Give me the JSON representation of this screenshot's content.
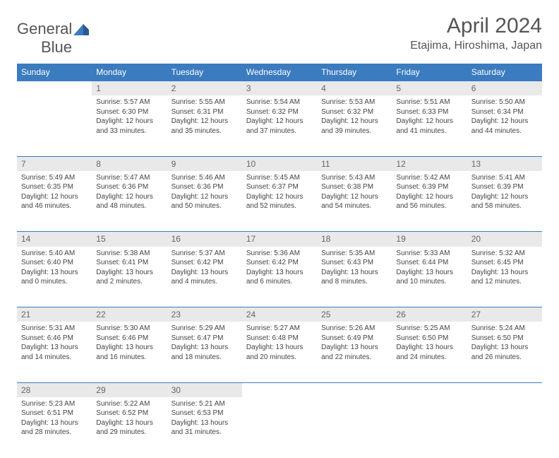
{
  "logo": {
    "text_left": "General",
    "text_right": "Blue"
  },
  "header": {
    "title": "April 2024",
    "location": "Etajima, Hiroshima, Japan"
  },
  "colors": {
    "header_bg": "#3b7bbf",
    "header_text": "#ffffff",
    "daynum_bg": "#e9e9e9",
    "daynum_text": "#666666",
    "body_text": "#444444",
    "divider": "#3b7bbf",
    "logo_gray": "#555555",
    "logo_blue": "#3b7bbf"
  },
  "day_headers": [
    "Sunday",
    "Monday",
    "Tuesday",
    "Wednesday",
    "Thursday",
    "Friday",
    "Saturday"
  ],
  "weeks": [
    {
      "nums": [
        "",
        "1",
        "2",
        "3",
        "4",
        "5",
        "6"
      ],
      "cells": [
        {
          "sunrise": "",
          "sunset": "",
          "daylight1": "",
          "daylight2": ""
        },
        {
          "sunrise": "Sunrise: 5:57 AM",
          "sunset": "Sunset: 6:30 PM",
          "daylight1": "Daylight: 12 hours",
          "daylight2": "and 33 minutes."
        },
        {
          "sunrise": "Sunrise: 5:55 AM",
          "sunset": "Sunset: 6:31 PM",
          "daylight1": "Daylight: 12 hours",
          "daylight2": "and 35 minutes."
        },
        {
          "sunrise": "Sunrise: 5:54 AM",
          "sunset": "Sunset: 6:32 PM",
          "daylight1": "Daylight: 12 hours",
          "daylight2": "and 37 minutes."
        },
        {
          "sunrise": "Sunrise: 5:53 AM",
          "sunset": "Sunset: 6:32 PM",
          "daylight1": "Daylight: 12 hours",
          "daylight2": "and 39 minutes."
        },
        {
          "sunrise": "Sunrise: 5:51 AM",
          "sunset": "Sunset: 6:33 PM",
          "daylight1": "Daylight: 12 hours",
          "daylight2": "and 41 minutes."
        },
        {
          "sunrise": "Sunrise: 5:50 AM",
          "sunset": "Sunset: 6:34 PM",
          "daylight1": "Daylight: 12 hours",
          "daylight2": "and 44 minutes."
        }
      ]
    },
    {
      "nums": [
        "7",
        "8",
        "9",
        "10",
        "11",
        "12",
        "13"
      ],
      "cells": [
        {
          "sunrise": "Sunrise: 5:49 AM",
          "sunset": "Sunset: 6:35 PM",
          "daylight1": "Daylight: 12 hours",
          "daylight2": "and 46 minutes."
        },
        {
          "sunrise": "Sunrise: 5:47 AM",
          "sunset": "Sunset: 6:36 PM",
          "daylight1": "Daylight: 12 hours",
          "daylight2": "and 48 minutes."
        },
        {
          "sunrise": "Sunrise: 5:46 AM",
          "sunset": "Sunset: 6:36 PM",
          "daylight1": "Daylight: 12 hours",
          "daylight2": "and 50 minutes."
        },
        {
          "sunrise": "Sunrise: 5:45 AM",
          "sunset": "Sunset: 6:37 PM",
          "daylight1": "Daylight: 12 hours",
          "daylight2": "and 52 minutes."
        },
        {
          "sunrise": "Sunrise: 5:43 AM",
          "sunset": "Sunset: 6:38 PM",
          "daylight1": "Daylight: 12 hours",
          "daylight2": "and 54 minutes."
        },
        {
          "sunrise": "Sunrise: 5:42 AM",
          "sunset": "Sunset: 6:39 PM",
          "daylight1": "Daylight: 12 hours",
          "daylight2": "and 56 minutes."
        },
        {
          "sunrise": "Sunrise: 5:41 AM",
          "sunset": "Sunset: 6:39 PM",
          "daylight1": "Daylight: 12 hours",
          "daylight2": "and 58 minutes."
        }
      ]
    },
    {
      "nums": [
        "14",
        "15",
        "16",
        "17",
        "18",
        "19",
        "20"
      ],
      "cells": [
        {
          "sunrise": "Sunrise: 5:40 AM",
          "sunset": "Sunset: 6:40 PM",
          "daylight1": "Daylight: 13 hours",
          "daylight2": "and 0 minutes."
        },
        {
          "sunrise": "Sunrise: 5:38 AM",
          "sunset": "Sunset: 6:41 PM",
          "daylight1": "Daylight: 13 hours",
          "daylight2": "and 2 minutes."
        },
        {
          "sunrise": "Sunrise: 5:37 AM",
          "sunset": "Sunset: 6:42 PM",
          "daylight1": "Daylight: 13 hours",
          "daylight2": "and 4 minutes."
        },
        {
          "sunrise": "Sunrise: 5:36 AM",
          "sunset": "Sunset: 6:42 PM",
          "daylight1": "Daylight: 13 hours",
          "daylight2": "and 6 minutes."
        },
        {
          "sunrise": "Sunrise: 5:35 AM",
          "sunset": "Sunset: 6:43 PM",
          "daylight1": "Daylight: 13 hours",
          "daylight2": "and 8 minutes."
        },
        {
          "sunrise": "Sunrise: 5:33 AM",
          "sunset": "Sunset: 6:44 PM",
          "daylight1": "Daylight: 13 hours",
          "daylight2": "and 10 minutes."
        },
        {
          "sunrise": "Sunrise: 5:32 AM",
          "sunset": "Sunset: 6:45 PM",
          "daylight1": "Daylight: 13 hours",
          "daylight2": "and 12 minutes."
        }
      ]
    },
    {
      "nums": [
        "21",
        "22",
        "23",
        "24",
        "25",
        "26",
        "27"
      ],
      "cells": [
        {
          "sunrise": "Sunrise: 5:31 AM",
          "sunset": "Sunset: 6:46 PM",
          "daylight1": "Daylight: 13 hours",
          "daylight2": "and 14 minutes."
        },
        {
          "sunrise": "Sunrise: 5:30 AM",
          "sunset": "Sunset: 6:46 PM",
          "daylight1": "Daylight: 13 hours",
          "daylight2": "and 16 minutes."
        },
        {
          "sunrise": "Sunrise: 5:29 AM",
          "sunset": "Sunset: 6:47 PM",
          "daylight1": "Daylight: 13 hours",
          "daylight2": "and 18 minutes."
        },
        {
          "sunrise": "Sunrise: 5:27 AM",
          "sunset": "Sunset: 6:48 PM",
          "daylight1": "Daylight: 13 hours",
          "daylight2": "and 20 minutes."
        },
        {
          "sunrise": "Sunrise: 5:26 AM",
          "sunset": "Sunset: 6:49 PM",
          "daylight1": "Daylight: 13 hours",
          "daylight2": "and 22 minutes."
        },
        {
          "sunrise": "Sunrise: 5:25 AM",
          "sunset": "Sunset: 6:50 PM",
          "daylight1": "Daylight: 13 hours",
          "daylight2": "and 24 minutes."
        },
        {
          "sunrise": "Sunrise: 5:24 AM",
          "sunset": "Sunset: 6:50 PM",
          "daylight1": "Daylight: 13 hours",
          "daylight2": "and 26 minutes."
        }
      ]
    },
    {
      "nums": [
        "28",
        "29",
        "30",
        "",
        "",
        "",
        ""
      ],
      "cells": [
        {
          "sunrise": "Sunrise: 5:23 AM",
          "sunset": "Sunset: 6:51 PM",
          "daylight1": "Daylight: 13 hours",
          "daylight2": "and 28 minutes."
        },
        {
          "sunrise": "Sunrise: 5:22 AM",
          "sunset": "Sunset: 6:52 PM",
          "daylight1": "Daylight: 13 hours",
          "daylight2": "and 29 minutes."
        },
        {
          "sunrise": "Sunrise: 5:21 AM",
          "sunset": "Sunset: 6:53 PM",
          "daylight1": "Daylight: 13 hours",
          "daylight2": "and 31 minutes."
        },
        {
          "sunrise": "",
          "sunset": "",
          "daylight1": "",
          "daylight2": ""
        },
        {
          "sunrise": "",
          "sunset": "",
          "daylight1": "",
          "daylight2": ""
        },
        {
          "sunrise": "",
          "sunset": "",
          "daylight1": "",
          "daylight2": ""
        },
        {
          "sunrise": "",
          "sunset": "",
          "daylight1": "",
          "daylight2": ""
        }
      ]
    }
  ]
}
